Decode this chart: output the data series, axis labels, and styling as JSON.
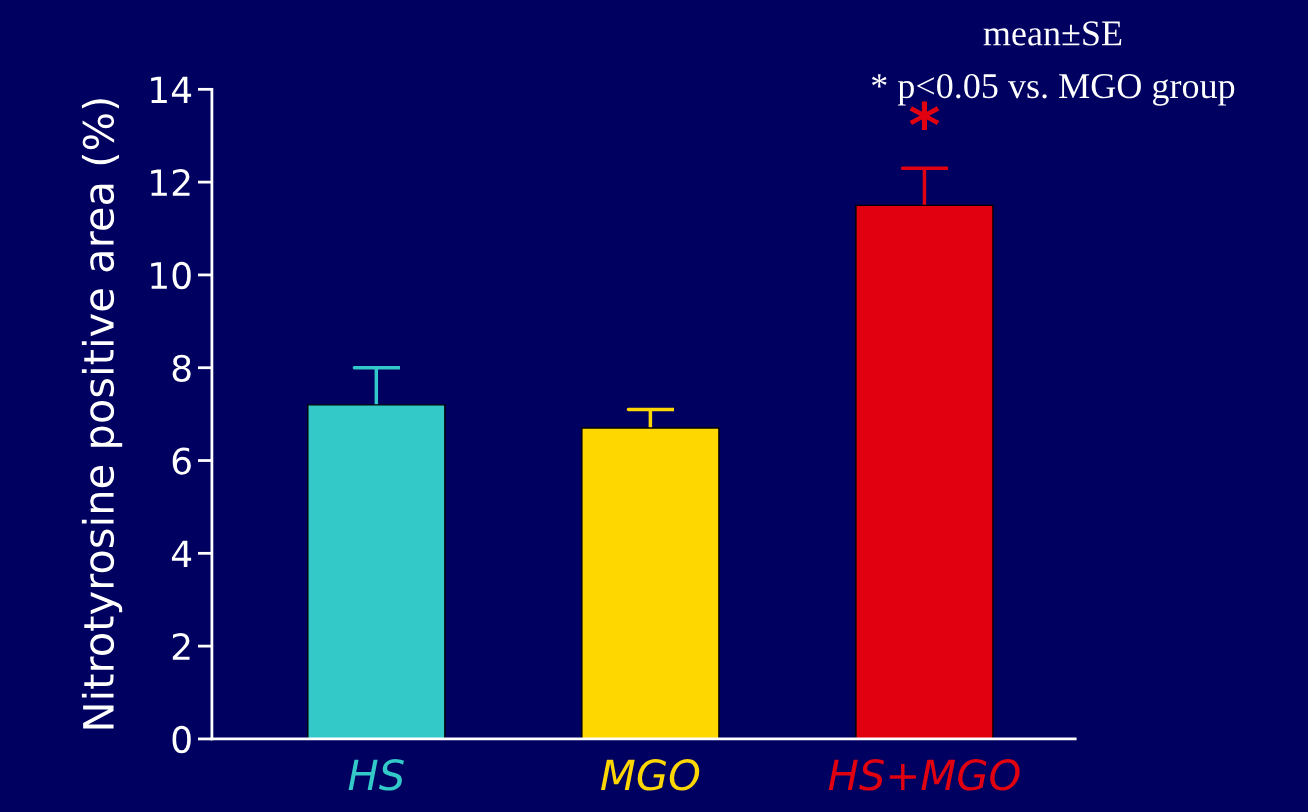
{
  "chart_data": {
    "type": "bar",
    "ylabel": "Nitrotyrosine positive area (%)",
    "categories": [
      "HS",
      "MGO",
      "HS+MGO"
    ],
    "values": [
      7.2,
      6.7,
      11.5
    ],
    "errors": [
      [
        7.2,
        8.0
      ],
      [
        6.7,
        7.1
      ],
      [
        11.5,
        12.3
      ]
    ],
    "colors": [
      "#33c9c9",
      "#ffd700",
      "#e00010"
    ],
    "ylim": [
      0,
      14
    ],
    "yticks": [
      0,
      2,
      4,
      6,
      8,
      10,
      12,
      14
    ],
    "grid": false,
    "legend": false,
    "annotations": [
      "mean±SE",
      "* p<0.05 vs. MGO group",
      "*"
    ]
  }
}
